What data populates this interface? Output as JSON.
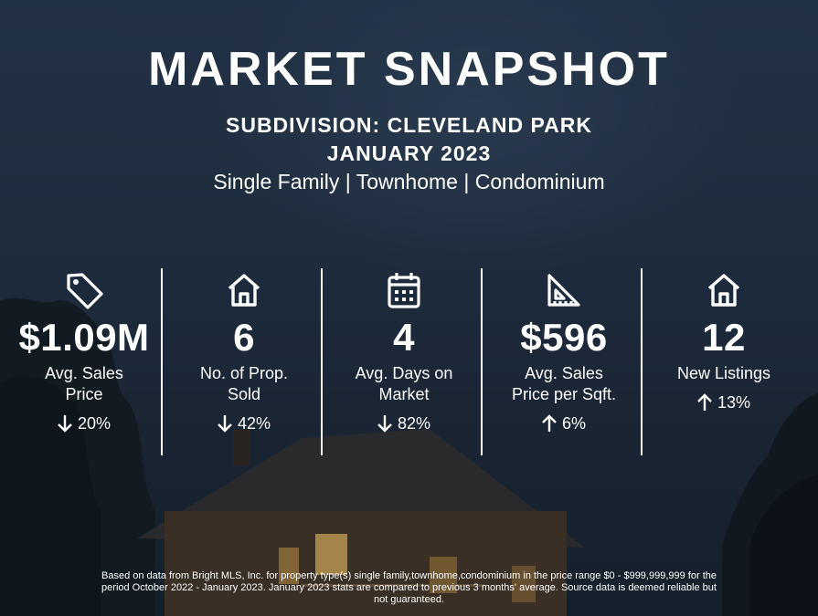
{
  "header": {
    "title": "MARKET SNAPSHOT",
    "subdivision": "SUBDIVISION: CLEVELAND PARK",
    "period": "JANUARY 2023",
    "property_types": "Single Family | Townhome | Condominium"
  },
  "stats": [
    {
      "icon": "price-tag-icon",
      "value": "$1.09M",
      "label_line1": "Avg. Sales",
      "label_line2": "Price",
      "trend": "down",
      "change": "20%"
    },
    {
      "icon": "house-icon",
      "value": "6",
      "label_line1": "No. of Prop.",
      "label_line2": "Sold",
      "trend": "down",
      "change": "42%"
    },
    {
      "icon": "calendar-icon",
      "value": "4",
      "label_line1": "Avg. Days on",
      "label_line2": "Market",
      "trend": "down",
      "change": "82%"
    },
    {
      "icon": "set-square-ruler-icon",
      "value": "$596",
      "label_line1": "Avg. Sales",
      "label_line2": "Price per Sqft.",
      "trend": "up",
      "change": "6%"
    },
    {
      "icon": "house-icon",
      "value": "12",
      "label_line1": "New Listings",
      "label_line2": "",
      "trend": "up",
      "change": "13%"
    }
  ],
  "footnote": {
    "line1": "Based on data from Bright MLS, Inc. for property type(s) single family,townhome,condominium in the price range $0 - $999,999,999 for the",
    "line2": "period October 2022 - January 2023. January 2023 stats are compared to previous 3 months' average. Source data is deemed reliable but",
    "line3": "not guaranteed."
  },
  "colors": {
    "background": "#1b2736",
    "text": "#ffffff",
    "window_glow": "#c9a257"
  }
}
